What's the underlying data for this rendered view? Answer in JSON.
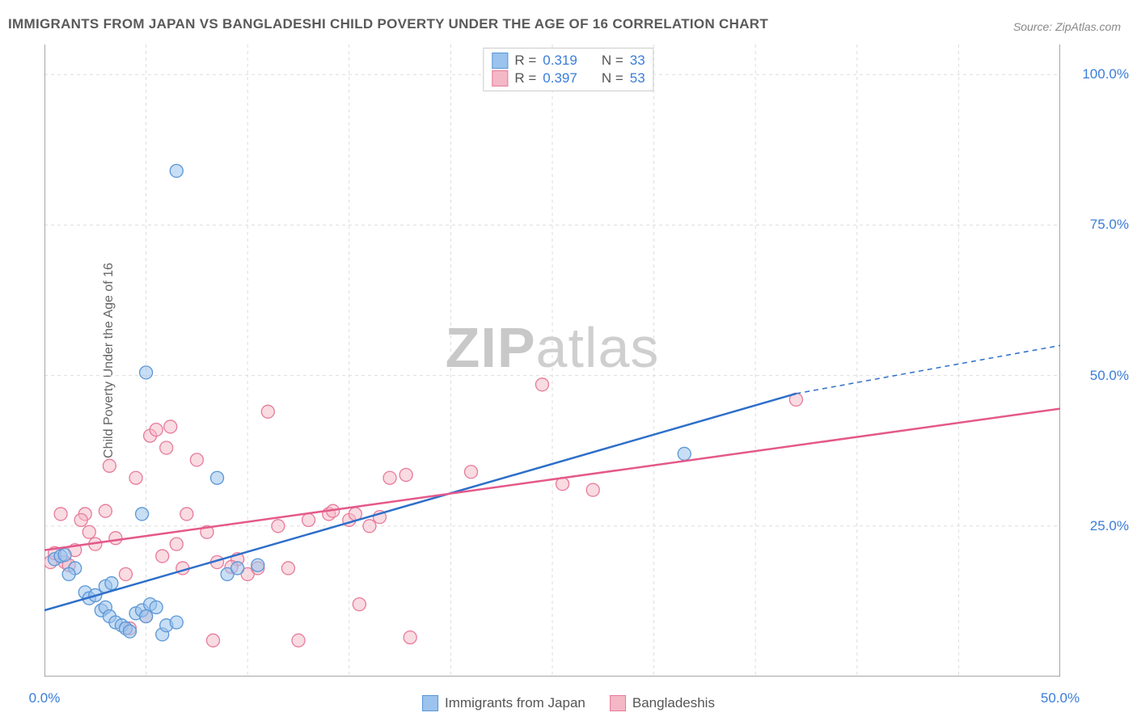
{
  "title": "IMMIGRANTS FROM JAPAN VS BANGLADESHI CHILD POVERTY UNDER THE AGE OF 16 CORRELATION CHART",
  "source": "Source: ZipAtlas.com",
  "yaxis_label": "Child Poverty Under the Age of 16",
  "watermark_bold": "ZIP",
  "watermark_light": "atlas",
  "chart": {
    "type": "scatter",
    "xlim": [
      0,
      50
    ],
    "ylim": [
      0,
      105
    ],
    "yticks": [
      25,
      50,
      75,
      100
    ],
    "ytick_labels": [
      "25.0%",
      "50.0%",
      "75.0%",
      "100.0%"
    ],
    "xticks": [
      0,
      50
    ],
    "xtick_labels": [
      "0.0%",
      "50.0%"
    ],
    "vgrids": [
      5,
      10,
      15,
      20,
      25,
      30,
      35,
      40,
      45
    ],
    "background_color": "#ffffff",
    "grid_color": "#dddddd",
    "axis_color": "#888888",
    "series": [
      {
        "name": "Immigrants from Japan",
        "fill": "#9bc3ed",
        "stroke": "#5a96d6",
        "fill_opacity": 0.55,
        "r_label": "R =",
        "r_value": "0.319",
        "n_label": "N =",
        "n_value": "33",
        "marker_r": 8,
        "line": {
          "x1": 0,
          "y1": 11,
          "x2": 37,
          "y2": 47,
          "color": "#2e6fc9",
          "width": 2.5,
          "dash_from_x": 37,
          "dash_to_x": 50,
          "dash_y2": 55
        },
        "points": [
          [
            0.5,
            19.5
          ],
          [
            0.8,
            20
          ],
          [
            1.0,
            20.2
          ],
          [
            1.5,
            18
          ],
          [
            1.2,
            17
          ],
          [
            2.0,
            14
          ],
          [
            2.2,
            13
          ],
          [
            2.5,
            13.5
          ],
          [
            2.8,
            11
          ],
          [
            3.0,
            11.5
          ],
          [
            3.2,
            10
          ],
          [
            3.5,
            9
          ],
          [
            3.8,
            8.5
          ],
          [
            4.0,
            8
          ],
          [
            4.2,
            7.5
          ],
          [
            4.5,
            10.5
          ],
          [
            4.8,
            11
          ],
          [
            5.0,
            10
          ],
          [
            5.2,
            12
          ],
          [
            5.5,
            11.5
          ],
          [
            5.8,
            7
          ],
          [
            6.0,
            8.5
          ],
          [
            6.5,
            9
          ],
          [
            3.0,
            15
          ],
          [
            3.3,
            15.5
          ],
          [
            4.8,
            27
          ],
          [
            5.0,
            50.5
          ],
          [
            6.5,
            84
          ],
          [
            8.5,
            33
          ],
          [
            9.0,
            17
          ],
          [
            9.5,
            18
          ],
          [
            31.5,
            37
          ],
          [
            10.5,
            18.5
          ]
        ]
      },
      {
        "name": "Bangladeshis",
        "fill": "#f4b7c6",
        "stroke": "#e77a9a",
        "fill_opacity": 0.5,
        "r_label": "R =",
        "r_value": "0.397",
        "n_label": "N =",
        "n_value": "53",
        "marker_r": 8,
        "line": {
          "x1": 0,
          "y1": 21,
          "x2": 50,
          "y2": 44.5,
          "color": "#e4598a",
          "width": 2.5
        },
        "points": [
          [
            0.3,
            19
          ],
          [
            0.5,
            20.5
          ],
          [
            0.8,
            27
          ],
          [
            1.0,
            19
          ],
          [
            1.2,
            18.5
          ],
          [
            1.5,
            21
          ],
          [
            2.0,
            27
          ],
          [
            2.2,
            24
          ],
          [
            2.5,
            22
          ],
          [
            3.0,
            27.5
          ],
          [
            3.2,
            35
          ],
          [
            3.5,
            23
          ],
          [
            4.0,
            17
          ],
          [
            4.5,
            33
          ],
          [
            5.0,
            10
          ],
          [
            5.2,
            40
          ],
          [
            5.5,
            41
          ],
          [
            6.0,
            38
          ],
          [
            6.2,
            41.5
          ],
          [
            6.5,
            22
          ],
          [
            7.0,
            27
          ],
          [
            7.5,
            36
          ],
          [
            8.0,
            24
          ],
          [
            8.3,
            6
          ],
          [
            8.5,
            19
          ],
          [
            9.5,
            19.5
          ],
          [
            10.0,
            17
          ],
          [
            10.5,
            18
          ],
          [
            11.0,
            44
          ],
          [
            11.5,
            25
          ],
          [
            12.0,
            18
          ],
          [
            12.5,
            6
          ],
          [
            14.0,
            27
          ],
          [
            14.2,
            27.5
          ],
          [
            15.0,
            26
          ],
          [
            15.3,
            27
          ],
          [
            15.5,
            12
          ],
          [
            16.0,
            25
          ],
          [
            16.5,
            26.5
          ],
          [
            17.0,
            33
          ],
          [
            17.8,
            33.5
          ],
          [
            18.0,
            6.5
          ],
          [
            21.0,
            34
          ],
          [
            24.5,
            48.5
          ],
          [
            25.5,
            32
          ],
          [
            27.0,
            31
          ],
          [
            37.0,
            46
          ],
          [
            5.8,
            20
          ],
          [
            6.8,
            18
          ],
          [
            9.2,
            18.2
          ],
          [
            13.0,
            26
          ],
          [
            4.2,
            8
          ],
          [
            1.8,
            26
          ]
        ]
      }
    ]
  },
  "legend_bottom": [
    {
      "swatch_fill": "#9bc3ed",
      "swatch_stroke": "#5a96d6",
      "label": "Immigrants from Japan"
    },
    {
      "swatch_fill": "#f4b7c6",
      "swatch_stroke": "#e77a9a",
      "label": "Bangladeshis"
    }
  ]
}
